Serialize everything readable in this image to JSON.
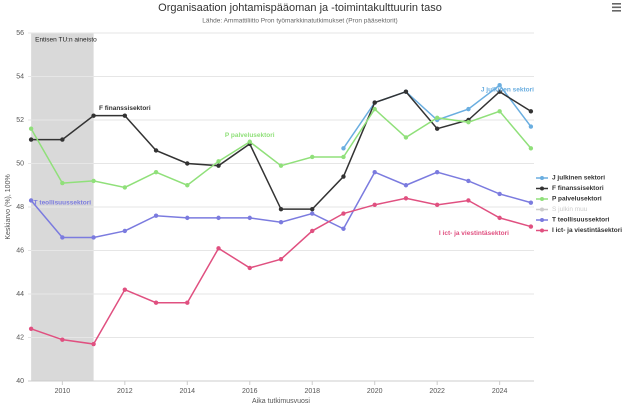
{
  "chart_data": {
    "type": "line",
    "title": "Organisaation johtamispääoman ja -toimintakulttuurin taso",
    "subtitle": "Lähde: Ammattiliitto Pron työmarkkinatutkimukset (Pron pääsektorit)",
    "x_label": "Aika tutkimusvuosi",
    "y_label": "Keskiarvo (%), 100%",
    "x": [
      2009,
      2010,
      2011,
      2012,
      2013,
      2014,
      2015,
      2016,
      2017,
      2018,
      2019,
      2020,
      2021,
      2022,
      2023,
      2024,
      2025
    ],
    "xlim": [
      2008.9,
      2025.1
    ],
    "xticks": [
      2010,
      2012,
      2014,
      2016,
      2018,
      2020,
      2022,
      2024
    ],
    "ylim": [
      40,
      56
    ],
    "yticks": [
      40,
      42,
      44,
      46,
      48,
      50,
      52,
      54,
      56
    ],
    "grid": true,
    "band": {
      "from": 2009,
      "to": 2011,
      "label": "Entisen TU:n aineisto",
      "color": "#d9d9d9"
    },
    "series": [
      {
        "name": "J julkinen sektori",
        "color": "#6aaee0",
        "visible": true,
        "values": [
          null,
          null,
          null,
          null,
          null,
          null,
          null,
          null,
          null,
          null,
          50.7,
          52.8,
          53.3,
          52.0,
          52.5,
          53.6,
          51.7
        ]
      },
      {
        "name": "F finanssisektori",
        "color": "#333333",
        "visible": true,
        "values": [
          51.1,
          51.1,
          52.2,
          52.2,
          50.6,
          50.0,
          49.9,
          50.9,
          47.9,
          47.9,
          49.4,
          52.8,
          53.3,
          51.6,
          52.0,
          53.3,
          52.4
        ]
      },
      {
        "name": "P palvelusektori",
        "color": "#90e07a",
        "visible": true,
        "values": [
          51.6,
          49.1,
          49.2,
          48.9,
          49.6,
          49.0,
          50.1,
          51.0,
          49.9,
          50.3,
          50.3,
          52.5,
          51.2,
          52.1,
          51.9,
          52.4,
          50.7
        ]
      },
      {
        "name": "S julkin muu",
        "color": "#cccccc",
        "visible": false,
        "values": [
          null,
          null,
          null,
          null,
          null,
          null,
          null,
          null,
          null,
          null,
          null,
          null,
          null,
          null,
          null,
          null,
          null
        ]
      },
      {
        "name": "T teollisuussektori",
        "color": "#7b7bdf",
        "visible": true,
        "values": [
          48.3,
          46.6,
          46.6,
          46.9,
          47.6,
          47.5,
          47.5,
          47.5,
          47.3,
          47.7,
          47.0,
          49.6,
          49.0,
          49.6,
          49.2,
          48.6,
          48.2
        ]
      },
      {
        "name": "I ict- ja viestintäsektori",
        "color": "#e05080",
        "visible": true,
        "values": [
          42.4,
          41.9,
          41.7,
          44.2,
          43.6,
          43.6,
          46.1,
          45.2,
          45.6,
          46.9,
          47.7,
          48.1,
          48.4,
          48.1,
          48.3,
          47.5,
          47.1
        ]
      }
    ]
  }
}
